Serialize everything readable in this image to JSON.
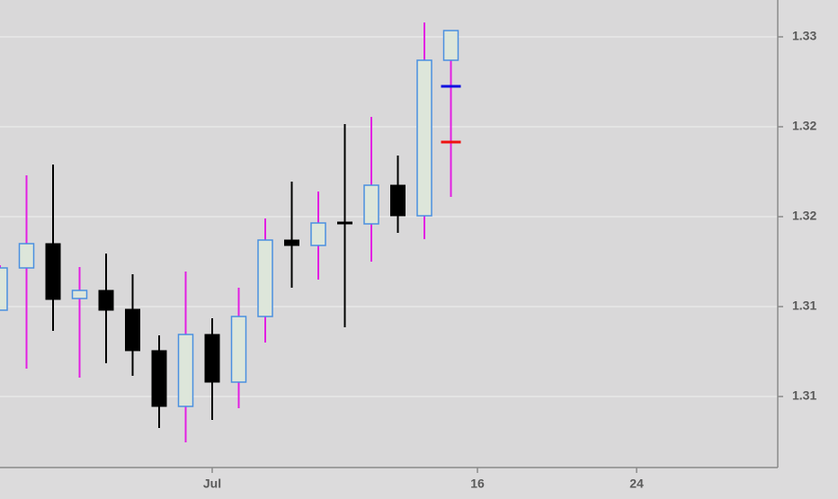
{
  "chart_data": {
    "type": "candlestick",
    "categories": [
      null,
      null,
      null,
      null,
      null,
      null,
      null,
      null,
      "Jul",
      null,
      null,
      null,
      null,
      null,
      null,
      null,
      null,
      null,
      "16",
      null,
      null,
      null,
      null,
      null,
      "24",
      null,
      null,
      null,
      null,
      null
    ],
    "open": [
      1.3148,
      1.31715,
      1.3185,
      1.31545,
      1.3159,
      1.31485,
      1.31255,
      1.30945,
      1.31345,
      1.3108,
      1.31445,
      1.3187,
      1.3184,
      1.3197,
      1.3196,
      1.32175,
      1.32005,
      1.3287,
      null,
      null,
      null,
      null,
      null,
      null,
      null,
      null,
      null,
      null,
      null,
      null
    ],
    "high": [
      1.3173,
      1.3223,
      1.3229,
      1.3172,
      1.31795,
      1.3168,
      1.3134,
      1.31695,
      1.31435,
      1.31605,
      1.3199,
      1.32195,
      1.3214,
      1.32515,
      1.32555,
      1.3234,
      1.3308,
      1.33035,
      null,
      null,
      null,
      null,
      null,
      null,
      null,
      null,
      null,
      null,
      null,
      null
    ],
    "low": [
      1.3148,
      1.31155,
      1.31365,
      1.31105,
      1.31185,
      1.31115,
      1.30825,
      1.30745,
      1.3087,
      1.30935,
      1.313,
      1.31605,
      1.3165,
      1.31385,
      1.3175,
      1.3191,
      1.31875,
      1.3211,
      null,
      null,
      null,
      null,
      null,
      null,
      null,
      null,
      null,
      null,
      null,
      null
    ],
    "close": [
      1.31715,
      1.3185,
      1.3154,
      1.3159,
      1.3148,
      1.31255,
      1.30945,
      1.31345,
      1.3108,
      1.31445,
      1.3187,
      1.3184,
      1.31965,
      1.3196,
      1.32175,
      1.32005,
      1.3287,
      1.33035,
      null,
      null,
      null,
      null,
      null,
      null,
      null,
      null,
      null,
      null,
      null,
      null
    ],
    "up_color": "#dde6da",
    "up_border": "#4a8fe0",
    "up_wick": "#e21ee2",
    "down_color": "#000000",
    "overlays": [
      {
        "color": "#1010e0",
        "values": [
          null,
          null,
          null,
          null,
          null,
          null,
          null,
          null,
          null,
          null,
          null,
          null,
          null,
          null,
          null,
          null,
          null,
          1.32725,
          null,
          null,
          null,
          null,
          null,
          null,
          null,
          null,
          null,
          null,
          null,
          null
        ]
      },
      {
        "color": "#ee1111",
        "values": [
          null,
          null,
          null,
          null,
          null,
          null,
          null,
          null,
          null,
          null,
          null,
          null,
          null,
          null,
          null,
          null,
          null,
          1.32415,
          null,
          null,
          null,
          null,
          null,
          null,
          null,
          null,
          null,
          null,
          null,
          null
        ]
      }
    ],
    "ylim": [
      1.30605,
      1.33205
    ],
    "yticks": [
      1.33,
      {
        "value": 1.325,
        "label": "1.32"
      },
      1.32,
      {
        "value": 1.315,
        "label": "1.31"
      },
      1.31
    ],
    "grid": true
  }
}
